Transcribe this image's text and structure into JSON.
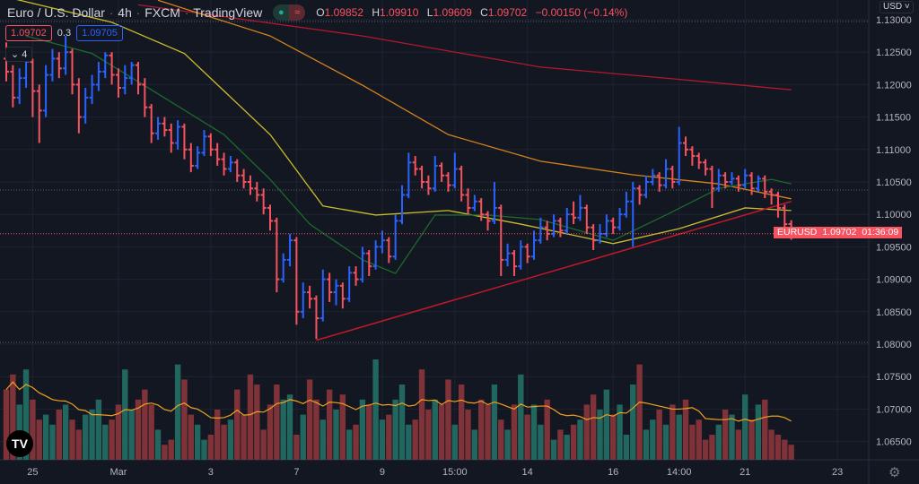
{
  "header": {
    "title": "Euro / U.S. Dollar",
    "interval": "4h",
    "source": "FXCM",
    "platform": "TradingView",
    "ohlc": {
      "o_label": "O",
      "o": "1.09852",
      "h_label": "H",
      "h": "1.09910",
      "l_label": "L",
      "l": "1.09609",
      "c_label": "C",
      "c": "1.09702",
      "change": "−0.00150 (−0.14%)"
    },
    "bid": "1.09702",
    "spread": "0.3",
    "ask": "1.09705",
    "indicators_toggle": "4",
    "currency": "USD"
  },
  "last_price": {
    "symbol": "EURUSD",
    "price": "1.09702",
    "countdown": "01:36:09"
  },
  "colors": {
    "background": "#131722",
    "up": "#2962ff",
    "down": "#f7525f",
    "vol_up": "#22675f",
    "vol_down": "#7f3238",
    "ma20": "#1b6b2c",
    "ma50": "#c9bd2a",
    "ma100": "#d3821d",
    "ma200": "#b2182b",
    "trendline": "#c2182b",
    "vol_ma": "#f0a020"
  },
  "chart_data": {
    "type": "ohlc",
    "ylim": [
      1.063,
      1.133
    ],
    "y_ticks": [
      "1.13000",
      "1.12500",
      "1.12000",
      "1.11500",
      "1.11000",
      "1.10500",
      "1.10000",
      "1.09500",
      "1.09000",
      "1.08500",
      "1.08000",
      "1.07500",
      "1.07000",
      "1.06500"
    ],
    "x_ticks": [
      {
        "bar": 4,
        "label": "25"
      },
      {
        "bar": 17,
        "label": "Mar"
      },
      {
        "bar": 31,
        "label": "3"
      },
      {
        "bar": 44,
        "label": "7"
      },
      {
        "bar": 57,
        "label": "9"
      },
      {
        "bar": 68,
        "label": "15:00"
      },
      {
        "bar": 79,
        "label": "14"
      },
      {
        "bar": 92,
        "label": "16"
      },
      {
        "bar": 102,
        "label": "14:00"
      },
      {
        "bar": 112,
        "label": "21"
      },
      {
        "bar": 126,
        "label": "23"
      }
    ],
    "ohlc": [
      [
        1.124,
        1.1265,
        1.1205,
        1.122
      ],
      [
        1.122,
        1.123,
        1.1165,
        1.118
      ],
      [
        1.118,
        1.1225,
        1.117,
        1.121
      ],
      [
        1.121,
        1.125,
        1.1195,
        1.1235
      ],
      [
        1.1235,
        1.124,
        1.115,
        1.119
      ],
      [
        1.119,
        1.12,
        1.111,
        1.116
      ],
      [
        1.116,
        1.123,
        1.115,
        1.1215
      ],
      [
        1.1215,
        1.1255,
        1.1205,
        1.124
      ],
      [
        1.124,
        1.125,
        1.121,
        1.1225
      ],
      [
        1.1225,
        1.1275,
        1.1215,
        1.125
      ],
      [
        1.125,
        1.1255,
        1.1185,
        1.12
      ],
      [
        1.12,
        1.121,
        1.1125,
        1.115
      ],
      [
        1.115,
        1.1195,
        1.114,
        1.118
      ],
      [
        1.118,
        1.1215,
        1.117,
        1.12
      ],
      [
        1.12,
        1.1235,
        1.119,
        1.122
      ],
      [
        1.122,
        1.125,
        1.121,
        1.1245
      ],
      [
        1.1245,
        1.125,
        1.12,
        1.1215
      ],
      [
        1.1215,
        1.1225,
        1.118,
        1.1195
      ],
      [
        1.1195,
        1.123,
        1.1185,
        1.121
      ],
      [
        1.121,
        1.1235,
        1.12,
        1.123
      ],
      [
        1.123,
        1.1235,
        1.1185,
        1.12
      ],
      [
        1.12,
        1.121,
        1.115,
        1.1165
      ],
      [
        1.1165,
        1.117,
        1.111,
        1.1125
      ],
      [
        1.1125,
        1.115,
        1.1115,
        1.114
      ],
      [
        1.114,
        1.115,
        1.112,
        1.113
      ],
      [
        1.113,
        1.114,
        1.1095,
        1.111
      ],
      [
        1.111,
        1.1145,
        1.11,
        1.1135
      ],
      [
        1.1135,
        1.114,
        1.1085,
        1.11
      ],
      [
        1.11,
        1.111,
        1.1065,
        1.1075
      ],
      [
        1.1075,
        1.1105,
        1.107,
        1.1095
      ],
      [
        1.1095,
        1.113,
        1.109,
        1.112
      ],
      [
        1.112,
        1.1125,
        1.109,
        1.11
      ],
      [
        1.11,
        1.111,
        1.1075,
        1.1085
      ],
      [
        1.1085,
        1.1095,
        1.106,
        1.107
      ],
      [
        1.107,
        1.109,
        1.1065,
        1.108
      ],
      [
        1.108,
        1.1085,
        1.105,
        1.106
      ],
      [
        1.106,
        1.107,
        1.104,
        1.105
      ],
      [
        1.105,
        1.106,
        1.103,
        1.104
      ],
      [
        1.104,
        1.105,
        1.102,
        1.103
      ],
      [
        1.103,
        1.104,
        1.1,
        1.101
      ],
      [
        1.101,
        1.1015,
        1.0975,
        1.099
      ],
      [
        1.099,
        1.0995,
        1.088,
        1.09
      ],
      [
        1.09,
        1.094,
        1.0895,
        1.093
      ],
      [
        1.093,
        1.097,
        1.092,
        1.096
      ],
      [
        1.096,
        1.0965,
        1.083,
        1.085
      ],
      [
        1.085,
        1.0895,
        1.084,
        1.088
      ],
      [
        1.088,
        1.089,
        1.0855,
        1.087
      ],
      [
        1.087,
        1.0875,
        1.0808,
        1.084
      ],
      [
        1.084,
        1.0915,
        1.0835,
        1.09
      ],
      [
        1.09,
        1.091,
        1.0865,
        1.088
      ],
      [
        1.088,
        1.09,
        1.086,
        1.089
      ],
      [
        1.089,
        1.0895,
        1.0855,
        1.087
      ],
      [
        1.087,
        1.092,
        1.0865,
        1.091
      ],
      [
        1.091,
        1.092,
        1.089,
        1.09
      ],
      [
        1.09,
        1.095,
        1.0895,
        1.094
      ],
      [
        1.094,
        1.0945,
        1.0905,
        1.092
      ],
      [
        1.092,
        1.096,
        1.0915,
        1.095
      ],
      [
        1.095,
        1.0975,
        1.094,
        1.096
      ],
      [
        1.096,
        1.0965,
        1.0925,
        1.0935
      ],
      [
        1.0935,
        1.1,
        1.093,
        1.099
      ],
      [
        1.099,
        1.1045,
        1.0985,
        1.103
      ],
      [
        1.103,
        1.1095,
        1.1025,
        1.108
      ],
      [
        1.108,
        1.109,
        1.106,
        1.107
      ],
      [
        1.107,
        1.1075,
        1.104,
        1.105
      ],
      [
        1.105,
        1.106,
        1.103,
        1.104
      ],
      [
        1.104,
        1.109,
        1.1035,
        1.1075
      ],
      [
        1.1075,
        1.108,
        1.105,
        1.106
      ],
      [
        1.106,
        1.1065,
        1.1035,
        1.1045
      ],
      [
        1.1045,
        1.1095,
        1.104,
        1.107
      ],
      [
        1.107,
        1.1075,
        1.102,
        1.103
      ],
      [
        1.103,
        1.104,
        1.1,
        1.101
      ],
      [
        1.101,
        1.103,
        1.1005,
        1.102
      ],
      [
        1.102,
        1.1025,
        1.099,
        1.1
      ],
      [
        1.1,
        1.1005,
        1.0975,
        1.099
      ],
      [
        1.099,
        1.105,
        1.0985,
        1.101
      ],
      [
        1.101,
        1.1015,
        1.0905,
        1.093
      ],
      [
        1.093,
        1.0955,
        1.092,
        1.094
      ],
      [
        1.094,
        1.0945,
        1.0905,
        1.092
      ],
      [
        1.092,
        1.096,
        1.0915,
        1.095
      ],
      [
        1.095,
        1.0955,
        1.0925,
        1.0935
      ],
      [
        1.0935,
        1.0975,
        1.093,
        1.096
      ],
      [
        1.096,
        1.0995,
        1.0955,
        1.098
      ],
      [
        1.098,
        1.099,
        1.096,
        1.097
      ],
      [
        1.097,
        1.1,
        1.0965,
        1.099
      ],
      [
        1.099,
        1.0995,
        1.0965,
        1.0975
      ],
      [
        1.0975,
        1.101,
        1.097,
        1.1
      ],
      [
        1.1,
        1.102,
        1.0985,
        1.0995
      ],
      [
        1.0995,
        1.103,
        1.099,
        1.101
      ],
      [
        1.101,
        1.1015,
        1.097,
        1.098
      ],
      [
        1.098,
        1.0985,
        1.0945,
        1.096
      ],
      [
        1.096,
        1.0985,
        1.0955,
        1.097
      ],
      [
        1.097,
        1.1,
        1.0965,
        1.099
      ],
      [
        1.099,
        1.0995,
        1.097,
        1.098
      ],
      [
        1.098,
        1.101,
        1.0975,
        1.1
      ],
      [
        1.1,
        1.1035,
        1.0995,
        1.102
      ],
      [
        1.102,
        1.105,
        1.095,
        1.104
      ],
      [
        1.104,
        1.1045,
        1.1015,
        1.103
      ],
      [
        1.103,
        1.106,
        1.1025,
        1.105
      ],
      [
        1.105,
        1.107,
        1.1045,
        1.106
      ],
      [
        1.106,
        1.1065,
        1.1035,
        1.1045
      ],
      [
        1.1045,
        1.1085,
        1.104,
        1.107
      ],
      [
        1.107,
        1.1075,
        1.104,
        1.105
      ],
      [
        1.105,
        1.1135,
        1.1045,
        1.111
      ],
      [
        1.111,
        1.112,
        1.109,
        1.11
      ],
      [
        1.11,
        1.1105,
        1.1075,
        1.109
      ],
      [
        1.109,
        1.1095,
        1.107,
        1.108
      ],
      [
        1.108,
        1.1085,
        1.106,
        1.107
      ],
      [
        1.107,
        1.1075,
        1.101,
        1.104
      ],
      [
        1.104,
        1.107,
        1.1035,
        1.106
      ],
      [
        1.106,
        1.1065,
        1.104,
        1.105
      ],
      [
        1.105,
        1.1065,
        1.1045,
        1.1055
      ],
      [
        1.1055,
        1.106,
        1.1035,
        1.1045
      ],
      [
        1.1045,
        1.107,
        1.104,
        1.106
      ],
      [
        1.106,
        1.1065,
        1.103,
        1.104
      ],
      [
        1.104,
        1.106,
        1.1035,
        1.1055
      ],
      [
        1.1055,
        1.106,
        1.1025,
        1.1035
      ],
      [
        1.1035,
        1.104,
        1.1015,
        1.103
      ],
      [
        1.103,
        1.1035,
        1.0995,
        1.101
      ],
      [
        1.101,
        1.1015,
        1.0975,
        1.0985
      ],
      [
        1.09852,
        1.0991,
        1.09609,
        1.09702
      ]
    ],
    "volume": [
      70,
      85,
      55,
      90,
      60,
      40,
      45,
      35,
      50,
      55,
      40,
      30,
      45,
      50,
      60,
      35,
      40,
      55,
      90,
      50,
      60,
      70,
      55,
      30,
      15,
      20,
      95,
      80,
      45,
      35,
      20,
      25,
      50,
      35,
      40,
      70,
      45,
      85,
      75,
      30,
      55,
      75,
      60,
      65,
      25,
      45,
      80,
      60,
      40,
      70,
      50,
      65,
      30,
      35,
      60,
      55,
      100,
      40,
      45,
      60,
      75,
      35,
      40,
      90,
      50,
      60,
      55,
      80,
      35,
      75,
      50,
      30,
      60,
      55,
      75,
      40,
      30,
      55,
      85,
      45,
      55,
      35,
      60,
      20,
      30,
      25,
      35,
      40,
      55,
      65,
      50,
      70,
      45,
      55,
      25,
      75,
      95,
      30,
      40,
      50,
      35,
      55,
      45,
      60,
      35,
      40,
      20,
      25,
      35,
      50,
      45,
      30,
      65,
      40,
      55,
      60,
      30,
      25,
      20,
      15
    ],
    "moving_averages": [
      {
        "color_key": "ma200",
        "points": [
          [
            20,
            1.1323
          ],
          [
            54,
            1.1275
          ],
          [
            81,
            1.1227
          ],
          [
            101,
            1.1209
          ],
          [
            119,
            1.1192
          ]
        ]
      },
      {
        "color_key": "ma100",
        "points": [
          [
            23,
            1.133
          ],
          [
            40,
            1.1275
          ],
          [
            54,
            1.1199
          ],
          [
            67,
            1.1123
          ],
          [
            81,
            1.1082
          ],
          [
            95,
            1.1061
          ],
          [
            108,
            1.1047
          ],
          [
            119,
            1.1024
          ]
        ]
      },
      {
        "color_key": "ma50",
        "points": [
          [
            0,
            1.1335
          ],
          [
            16,
            1.1296
          ],
          [
            27,
            1.1248
          ],
          [
            40,
            1.1123
          ],
          [
            48,
            1.1013
          ],
          [
            56,
            1.0999
          ],
          [
            67,
            1.1006
          ],
          [
            78,
            1.0985
          ],
          [
            92,
            1.0955
          ],
          [
            102,
            1.0978
          ],
          [
            112,
            1.101
          ],
          [
            119,
            1.1006
          ]
        ]
      },
      {
        "color_key": "ma20",
        "points": [
          [
            3,
            1.1275
          ],
          [
            13,
            1.1248
          ],
          [
            22,
            1.1192
          ],
          [
            33,
            1.1123
          ],
          [
            40,
            1.1054
          ],
          [
            46,
            1.0985
          ],
          [
            54,
            1.093
          ],
          [
            59,
            1.0909
          ],
          [
            65,
            1.0999
          ],
          [
            73,
            1.0999
          ],
          [
            81,
            1.0992
          ],
          [
            92,
            1.096
          ],
          [
            100,
            1.0999
          ],
          [
            108,
            1.104
          ],
          [
            116,
            1.1054
          ],
          [
            119,
            1.1047
          ]
        ]
      }
    ],
    "trendline": [
      [
        47,
        1.0806
      ],
      [
        119,
        1.102
      ]
    ]
  }
}
